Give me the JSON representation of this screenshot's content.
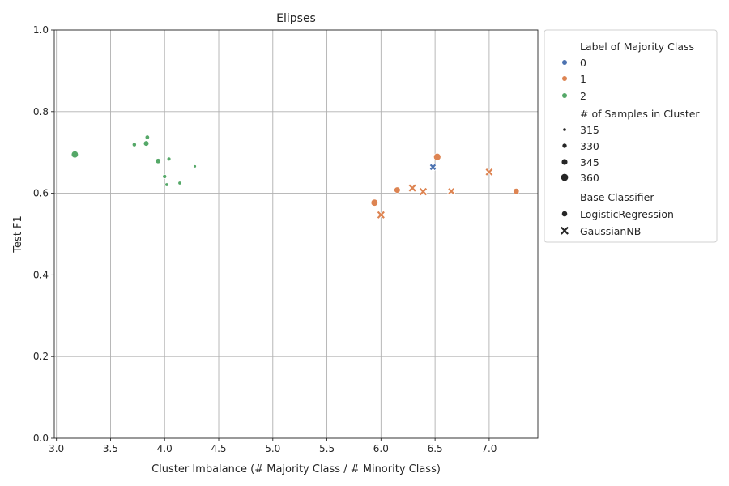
{
  "chart_data": {
    "type": "scatter",
    "title": "Elipses",
    "xlabel": "Cluster Imbalance (# Majority Class / # Minority Class)",
    "ylabel": "Test F1",
    "xlim": [
      2.98,
      7.45
    ],
    "ylim": [
      0.0,
      1.0
    ],
    "x_ticks": [
      3.0,
      3.5,
      4.0,
      4.5,
      5.0,
      5.5,
      6.0,
      6.5,
      7.0
    ],
    "x_tick_labels": [
      "3.0",
      "3.5",
      "4.0",
      "4.5",
      "5.0",
      "5.5",
      "6.0",
      "6.5",
      "7.0"
    ],
    "y_ticks": [
      0.0,
      0.2,
      0.4,
      0.6,
      0.8,
      1.0
    ],
    "y_tick_labels": [
      "0.0",
      "0.2",
      "0.4",
      "0.6",
      "0.8",
      "1.0"
    ],
    "grid": true,
    "legend_position": "outside-right-top",
    "legend": {
      "hue_title": "Label of Majority Class",
      "hue_entries": [
        {
          "label": "0",
          "color": "#4c72b0"
        },
        {
          "label": "1",
          "color": "#dd8452"
        },
        {
          "label": "2",
          "color": "#55a868"
        }
      ],
      "size_title": "# of Samples in Cluster",
      "size_entries": [
        "315",
        "330",
        "345",
        "360"
      ],
      "style_title": "Base Classifier",
      "style_entries": [
        {
          "label": "LogisticRegression",
          "marker": "circle"
        },
        {
          "label": "GaussianNB",
          "marker": "x"
        }
      ]
    },
    "points": [
      {
        "x": 3.17,
        "y": 0.695,
        "hue": "2",
        "size": 355,
        "style": "LogisticRegression"
      },
      {
        "x": 3.72,
        "y": 0.719,
        "hue": "2",
        "size": 328,
        "style": "LogisticRegression"
      },
      {
        "x": 3.83,
        "y": 0.722,
        "hue": "2",
        "size": 340,
        "style": "LogisticRegression"
      },
      {
        "x": 3.84,
        "y": 0.737,
        "hue": "2",
        "size": 330,
        "style": "LogisticRegression"
      },
      {
        "x": 3.94,
        "y": 0.679,
        "hue": "2",
        "size": 338,
        "style": "LogisticRegression"
      },
      {
        "x": 4.0,
        "y": 0.641,
        "hue": "2",
        "size": 327,
        "style": "LogisticRegression"
      },
      {
        "x": 4.02,
        "y": 0.621,
        "hue": "2",
        "size": 322,
        "style": "LogisticRegression"
      },
      {
        "x": 4.04,
        "y": 0.684,
        "hue": "2",
        "size": 325,
        "style": "LogisticRegression"
      },
      {
        "x": 4.14,
        "y": 0.625,
        "hue": "2",
        "size": 321,
        "style": "LogisticRegression"
      },
      {
        "x": 4.28,
        "y": 0.666,
        "hue": "2",
        "size": 316,
        "style": "LogisticRegression"
      },
      {
        "x": 5.94,
        "y": 0.577,
        "hue": "1",
        "size": 355,
        "style": "LogisticRegression"
      },
      {
        "x": 6.15,
        "y": 0.608,
        "hue": "1",
        "size": 348,
        "style": "LogisticRegression"
      },
      {
        "x": 6.52,
        "y": 0.689,
        "hue": "1",
        "size": 358,
        "style": "LogisticRegression"
      },
      {
        "x": 7.25,
        "y": 0.605,
        "hue": "1",
        "size": 346,
        "style": "LogisticRegression"
      },
      {
        "x": 6.0,
        "y": 0.547,
        "hue": "1",
        "size": 343,
        "style": "GaussianNB"
      },
      {
        "x": 6.29,
        "y": 0.613,
        "hue": "1",
        "size": 343,
        "style": "GaussianNB"
      },
      {
        "x": 6.39,
        "y": 0.604,
        "hue": "1",
        "size": 345,
        "style": "GaussianNB"
      },
      {
        "x": 6.65,
        "y": 0.605,
        "hue": "1",
        "size": 331,
        "style": "GaussianNB"
      },
      {
        "x": 7.0,
        "y": 0.652,
        "hue": "1",
        "size": 340,
        "style": "GaussianNB"
      },
      {
        "x": 6.48,
        "y": 0.664,
        "hue": "0",
        "size": 327,
        "style": "GaussianNB"
      }
    ]
  }
}
